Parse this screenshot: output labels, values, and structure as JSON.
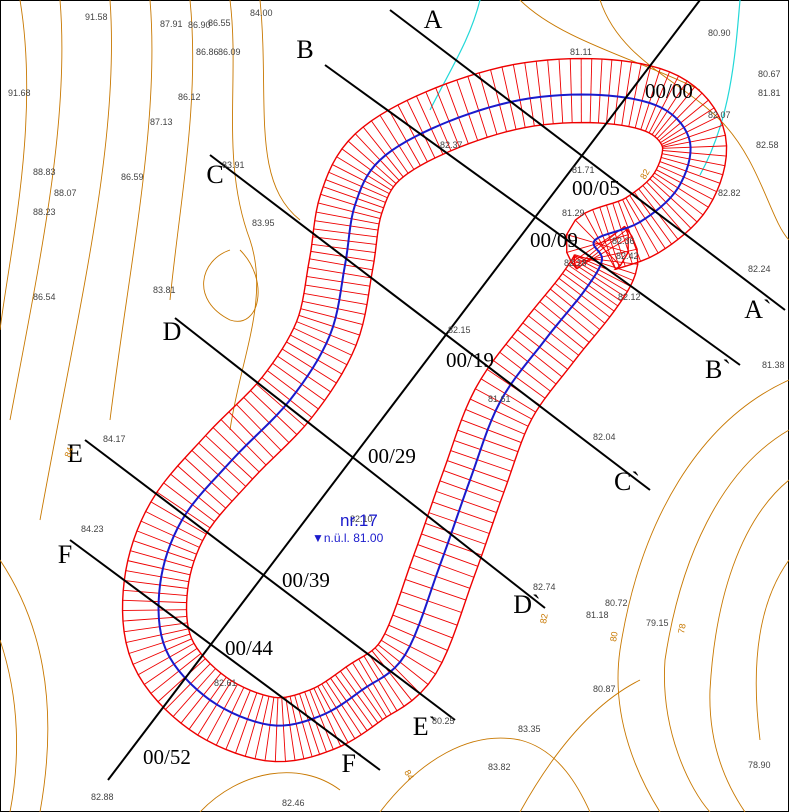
{
  "sections": [
    {
      "start": "A",
      "end": "A`"
    },
    {
      "start": "B",
      "end": "B`"
    },
    {
      "start": "C",
      "end": "C`"
    },
    {
      "start": "D",
      "end": "D`"
    },
    {
      "start": "E",
      "end": "E`"
    },
    {
      "start": "F",
      "end": "F`"
    }
  ],
  "chainages": [
    "00/00",
    "00/05",
    "00/09",
    "00/19",
    "00/29",
    "00/39",
    "00/44",
    "00/52"
  ],
  "spot_heights": [
    "91.58",
    "87.91",
    "86.90",
    "86.55",
    "84.00",
    "86.86",
    "86.09",
    "91.68",
    "86.12",
    "87.13",
    "83.91",
    "82.37",
    "81.11",
    "80.90",
    "80.67",
    "81.81",
    "82.07",
    "82.58",
    "81.71",
    "82.82",
    "81.29",
    "82.36",
    "82.42",
    "82.18",
    "82.24",
    "82.12",
    "81.38",
    "88.83",
    "88.07",
    "86.59",
    "88.23",
    "83.95",
    "83.81",
    "86.54",
    "82.15",
    "81.61",
    "82.04",
    "84.17",
    "84.23",
    "82.10",
    "82.74",
    "80.72",
    "81.18",
    "79.15",
    "80.87",
    "82.61",
    "80.25",
    "83.35",
    "83.82",
    "82.88",
    "82.46",
    "78.90"
  ],
  "contour_labels": [
    "82",
    "80",
    "78",
    "84",
    "84",
    "82"
  ],
  "pond": {
    "name": "nr.17",
    "level": "▼n.ü.l. 81.00"
  }
}
